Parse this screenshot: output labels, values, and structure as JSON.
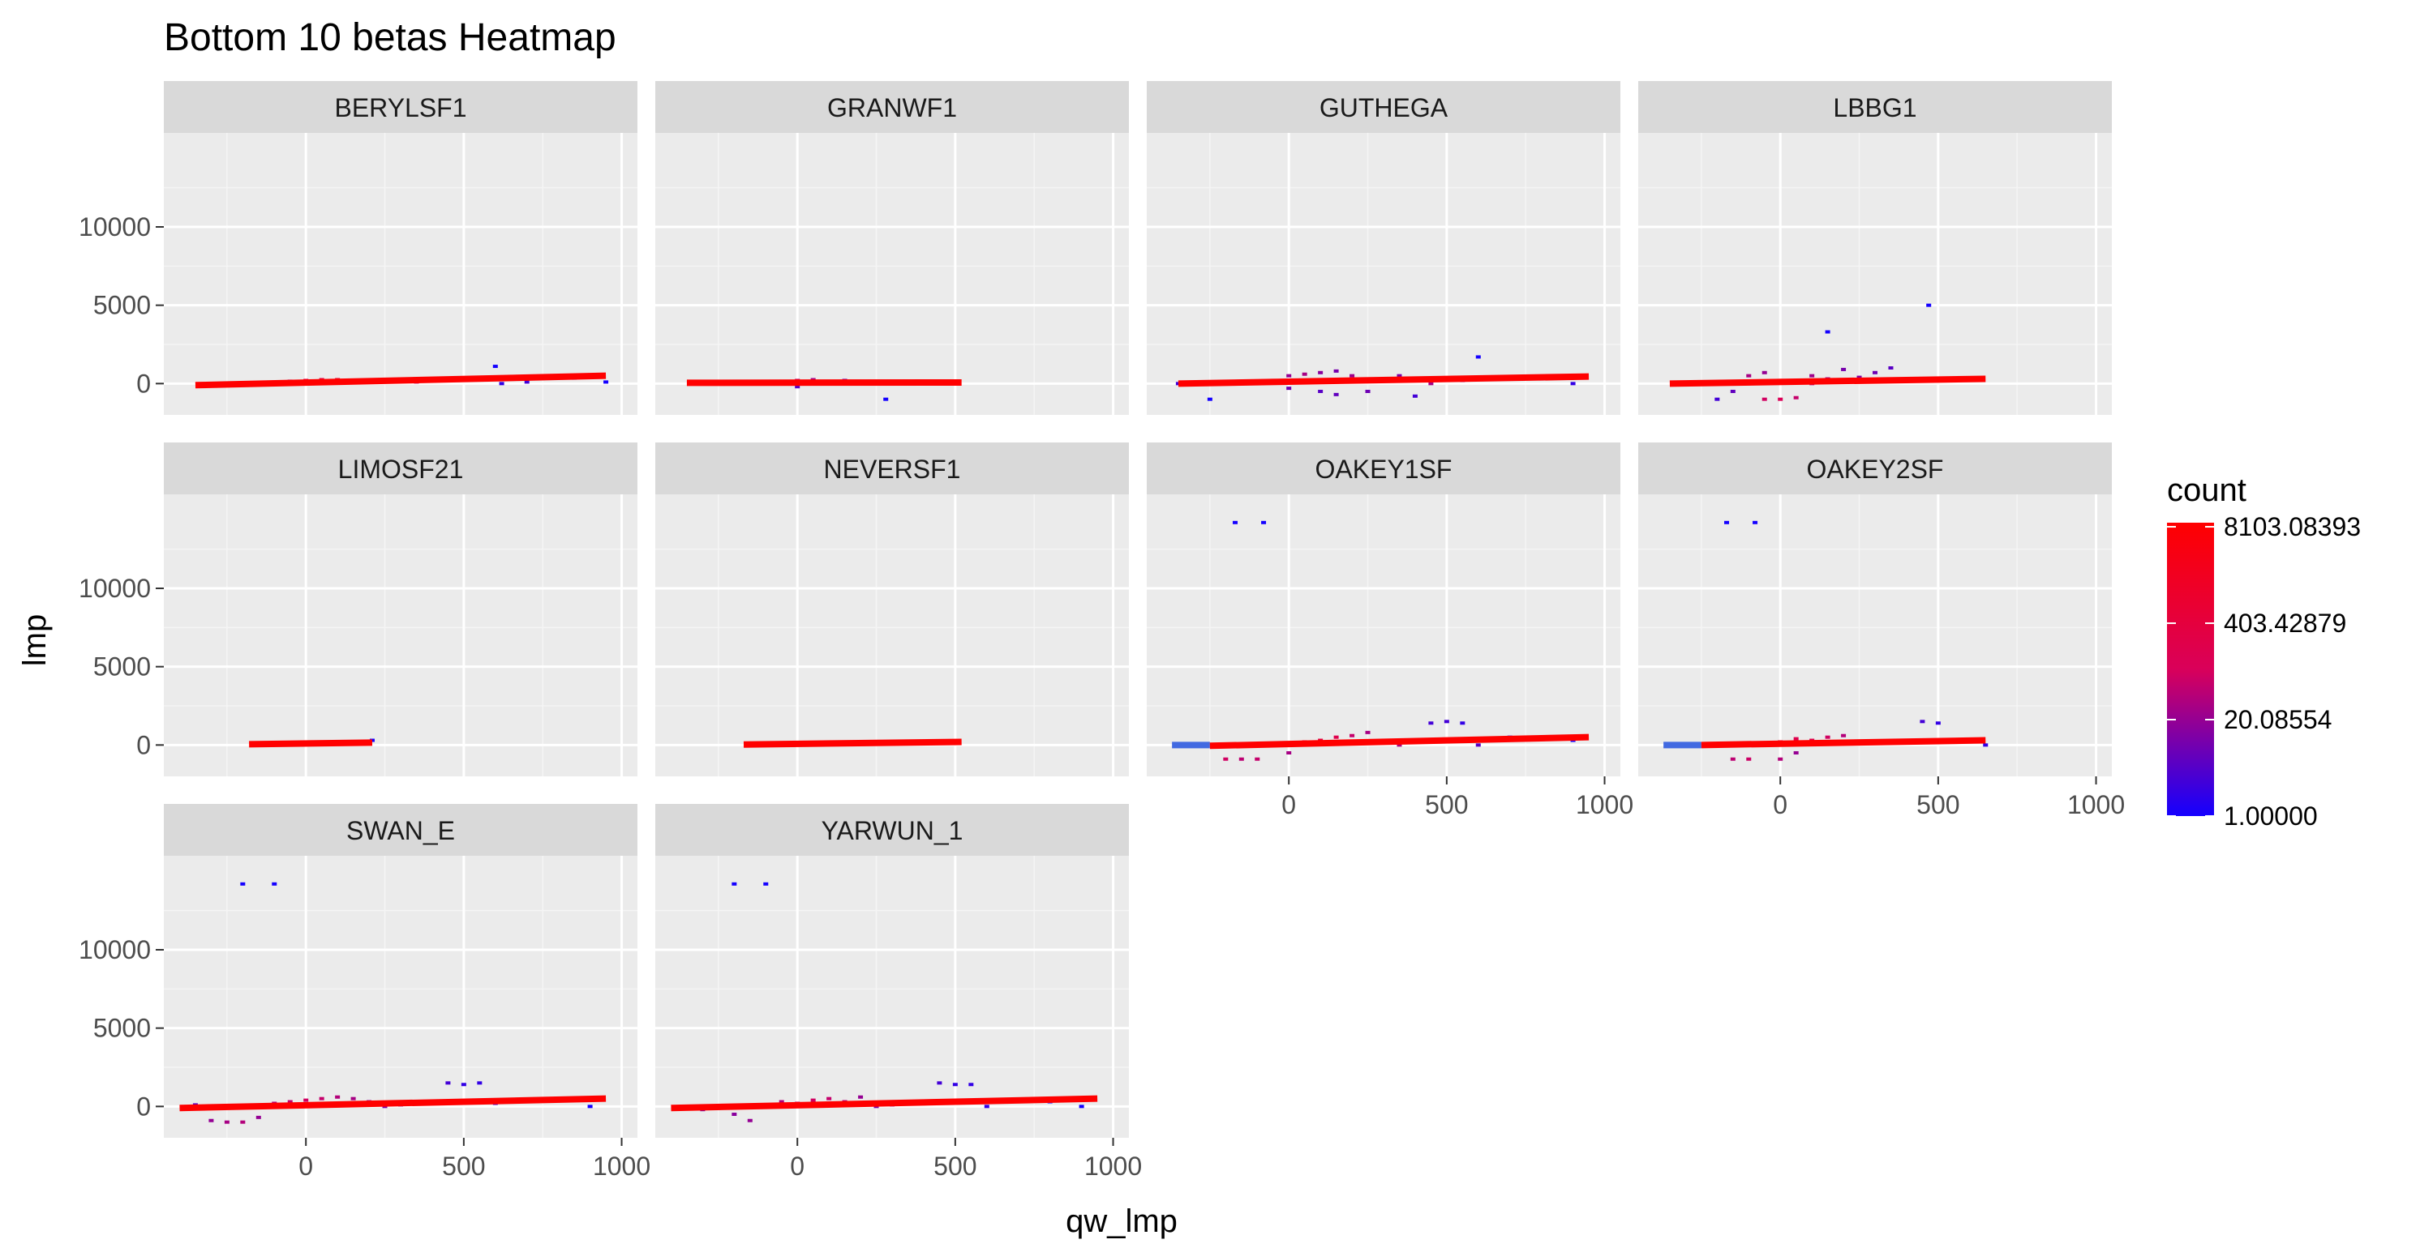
{
  "chart_data": {
    "type": "heatmap",
    "title": "Bottom 10 betas Heatmap",
    "xlabel": "qw_lmp",
    "ylabel": "lmp",
    "xlim": [
      -450,
      1050
    ],
    "ylim": [
      -2000,
      16000
    ],
    "x_ticks": [
      0,
      500,
      1000
    ],
    "y_ticks": [
      0,
      5000,
      10000
    ],
    "grid": true,
    "legend": {
      "title": "count",
      "position": "right",
      "scale": "log",
      "breaks": [
        "8103.08393",
        "403.42879",
        "20.08554",
        "1.00000"
      ],
      "break_values": [
        8103.08393,
        403.42879,
        20.08554,
        1.0
      ],
      "range": [
        1.0,
        9200
      ],
      "colors": {
        "low": "#0000ff",
        "high": "#ff0000"
      }
    },
    "fit_line_color": "#ff0000",
    "fit_line_low_color": "#4169e1",
    "panels": [
      {
        "name": "BERYLSF1",
        "fit": [
          [
            -350,
            -100
          ],
          [
            950,
            500
          ]
        ],
        "cells": [
          [
            -100,
            100,
            50
          ],
          [
            -50,
            150,
            20
          ],
          [
            0,
            200,
            200
          ],
          [
            50,
            250,
            400
          ],
          [
            100,
            250,
            800
          ],
          [
            150,
            200,
            900
          ],
          [
            200,
            250,
            700
          ],
          [
            250,
            150,
            300
          ],
          [
            300,
            300,
            120
          ],
          [
            350,
            100,
            50
          ],
          [
            400,
            200,
            30
          ],
          [
            500,
            200,
            40
          ],
          [
            550,
            250,
            15
          ],
          [
            600,
            1100,
            1
          ],
          [
            620,
            0,
            2
          ],
          [
            700,
            100,
            3
          ],
          [
            850,
            350,
            2
          ],
          [
            950,
            100,
            1
          ],
          [
            -250,
            0,
            5
          ]
        ]
      },
      {
        "name": "GRANWF1",
        "fit": [
          [
            -350,
            50
          ],
          [
            520,
            70
          ]
        ],
        "cells": [
          [
            0,
            200,
            60
          ],
          [
            50,
            250,
            30
          ],
          [
            50,
            0,
            20
          ],
          [
            100,
            0,
            40
          ],
          [
            150,
            200,
            10
          ],
          [
            0,
            -200,
            5
          ],
          [
            280,
            -1000,
            1
          ],
          [
            -150,
            0,
            8
          ],
          [
            200,
            100,
            15
          ],
          [
            300,
            150,
            12
          ]
        ]
      },
      {
        "name": "GUTHEGA",
        "fit": [
          [
            -350,
            0
          ],
          [
            950,
            450
          ]
        ],
        "cells": [
          [
            -250,
            -1000,
            1
          ],
          [
            -350,
            0,
            3
          ],
          [
            0,
            500,
            20
          ],
          [
            50,
            600,
            30
          ],
          [
            100,
            700,
            15
          ],
          [
            100,
            -500,
            5
          ],
          [
            150,
            800,
            10
          ],
          [
            150,
            -700,
            6
          ],
          [
            200,
            500,
            25
          ],
          [
            250,
            -500,
            8
          ],
          [
            300,
            200,
            40
          ],
          [
            350,
            500,
            12
          ],
          [
            400,
            -800,
            3
          ],
          [
            450,
            0,
            30
          ],
          [
            550,
            200,
            20
          ],
          [
            600,
            1700,
            1
          ],
          [
            800,
            300,
            2
          ],
          [
            900,
            0,
            2
          ],
          [
            -50,
            200,
            150
          ],
          [
            0,
            -300,
            8
          ],
          [
            250,
            300,
            100
          ]
        ]
      },
      {
        "name": "LBBG1",
        "fit": [
          [
            -350,
            0
          ],
          [
            650,
            300
          ]
        ],
        "cells": [
          [
            -100,
            500,
            30
          ],
          [
            -50,
            700,
            20
          ],
          [
            0,
            200,
            300
          ],
          [
            0,
            -1000,
            120
          ],
          [
            -50,
            -1000,
            80
          ],
          [
            50,
            -900,
            60
          ],
          [
            100,
            0,
            40
          ],
          [
            100,
            500,
            25
          ],
          [
            150,
            300,
            30
          ],
          [
            200,
            900,
            10
          ],
          [
            250,
            400,
            15
          ],
          [
            300,
            700,
            8
          ],
          [
            150,
            3300,
            1
          ],
          [
            470,
            5000,
            1
          ],
          [
            350,
            1000,
            5
          ],
          [
            400,
            200,
            12
          ],
          [
            -200,
            -1000,
            3
          ],
          [
            -150,
            -500,
            6
          ]
        ]
      },
      {
        "name": "LIMOSF21",
        "fit": [
          [
            -180,
            50
          ],
          [
            210,
            150
          ]
        ],
        "cells": [
          [
            210,
            300,
            1
          ],
          [
            0,
            100,
            500
          ]
        ]
      },
      {
        "name": "NEVERSF1",
        "fit": [
          [
            -170,
            30
          ],
          [
            520,
            200
          ]
        ],
        "cells": [
          [
            200,
            200,
            50
          ],
          [
            250,
            150,
            30
          ],
          [
            400,
            150,
            20
          ],
          [
            100,
            100,
            40
          ]
        ]
      },
      {
        "name": "OAKEY1SF",
        "fit": [
          [
            -250,
            -50
          ],
          [
            950,
            500
          ]
        ],
        "cells": [
          [
            -170,
            14200,
            1
          ],
          [
            -80,
            14200,
            1
          ],
          [
            -200,
            -900,
            80
          ],
          [
            -150,
            -900,
            50
          ],
          [
            -100,
            -900,
            60
          ],
          [
            0,
            -500,
            30
          ],
          [
            50,
            200,
            500
          ],
          [
            100,
            300,
            400
          ],
          [
            150,
            500,
            200
          ],
          [
            200,
            600,
            60
          ],
          [
            250,
            800,
            30
          ],
          [
            300,
            200,
            120
          ],
          [
            350,
            0,
            40
          ],
          [
            450,
            1400,
            3
          ],
          [
            500,
            1500,
            3
          ],
          [
            550,
            1400,
            2
          ],
          [
            600,
            0,
            5
          ],
          [
            700,
            500,
            2
          ],
          [
            900,
            300,
            1
          ],
          [
            -50,
            0,
            60
          ]
        ],
        "low_segment": [
          [
            -370,
            0
          ],
          [
            -250,
            0
          ]
        ]
      },
      {
        "name": "OAKEY2SF",
        "fit": [
          [
            -250,
            0
          ],
          [
            650,
            300
          ]
        ],
        "cells": [
          [
            -170,
            14200,
            1
          ],
          [
            -80,
            14200,
            1
          ],
          [
            -150,
            -900,
            50
          ],
          [
            -100,
            -900,
            70
          ],
          [
            0,
            -900,
            40
          ],
          [
            50,
            -500,
            20
          ],
          [
            0,
            200,
            300
          ],
          [
            50,
            400,
            200
          ],
          [
            100,
            300,
            150
          ],
          [
            150,
            500,
            80
          ],
          [
            200,
            600,
            40
          ],
          [
            250,
            200,
            60
          ],
          [
            450,
            1500,
            3
          ],
          [
            500,
            1400,
            2
          ],
          [
            600,
            200,
            5
          ],
          [
            650,
            0,
            2
          ],
          [
            -50,
            100,
            120
          ]
        ],
        "low_segment": [
          [
            -370,
            0
          ],
          [
            -250,
            0
          ]
        ]
      },
      {
        "name": "SWAN_E",
        "fit": [
          [
            -400,
            -100
          ],
          [
            950,
            500
          ]
        ],
        "cells": [
          [
            -200,
            14200,
            1
          ],
          [
            -100,
            14200,
            1
          ],
          [
            -300,
            -900,
            20
          ],
          [
            -250,
            -1000,
            30
          ],
          [
            -200,
            -1000,
            40
          ],
          [
            -150,
            -700,
            20
          ],
          [
            -100,
            200,
            40
          ],
          [
            -50,
            300,
            60
          ],
          [
            0,
            400,
            80
          ],
          [
            50,
            500,
            60
          ],
          [
            100,
            600,
            40
          ],
          [
            150,
            500,
            30
          ],
          [
            200,
            300,
            20
          ],
          [
            250,
            0,
            10
          ],
          [
            300,
            100,
            8
          ],
          [
            450,
            1500,
            3
          ],
          [
            500,
            1400,
            2
          ],
          [
            550,
            1500,
            2
          ],
          [
            600,
            200,
            3
          ],
          [
            800,
            400,
            1
          ],
          [
            900,
            0,
            1
          ],
          [
            -350,
            100,
            5
          ]
        ]
      },
      {
        "name": "YARWUN_1",
        "fit": [
          [
            -400,
            -100
          ],
          [
            950,
            500
          ]
        ],
        "cells": [
          [
            -200,
            14200,
            1
          ],
          [
            -100,
            14200,
            1
          ],
          [
            -350,
            0,
            5
          ],
          [
            -300,
            -200,
            8
          ],
          [
            -250,
            0,
            10
          ],
          [
            -200,
            -500,
            15
          ],
          [
            -150,
            -900,
            20
          ],
          [
            -100,
            100,
            30
          ],
          [
            -50,
            300,
            40
          ],
          [
            0,
            200,
            60
          ],
          [
            50,
            400,
            80
          ],
          [
            100,
            500,
            60
          ],
          [
            150,
            300,
            40
          ],
          [
            200,
            600,
            20
          ],
          [
            250,
            0,
            10
          ],
          [
            300,
            100,
            8
          ],
          [
            450,
            1500,
            3
          ],
          [
            500,
            1400,
            2
          ],
          [
            550,
            1400,
            2
          ],
          [
            600,
            0,
            2
          ],
          [
            800,
            300,
            1
          ],
          [
            900,
            0,
            1
          ]
        ]
      }
    ]
  }
}
